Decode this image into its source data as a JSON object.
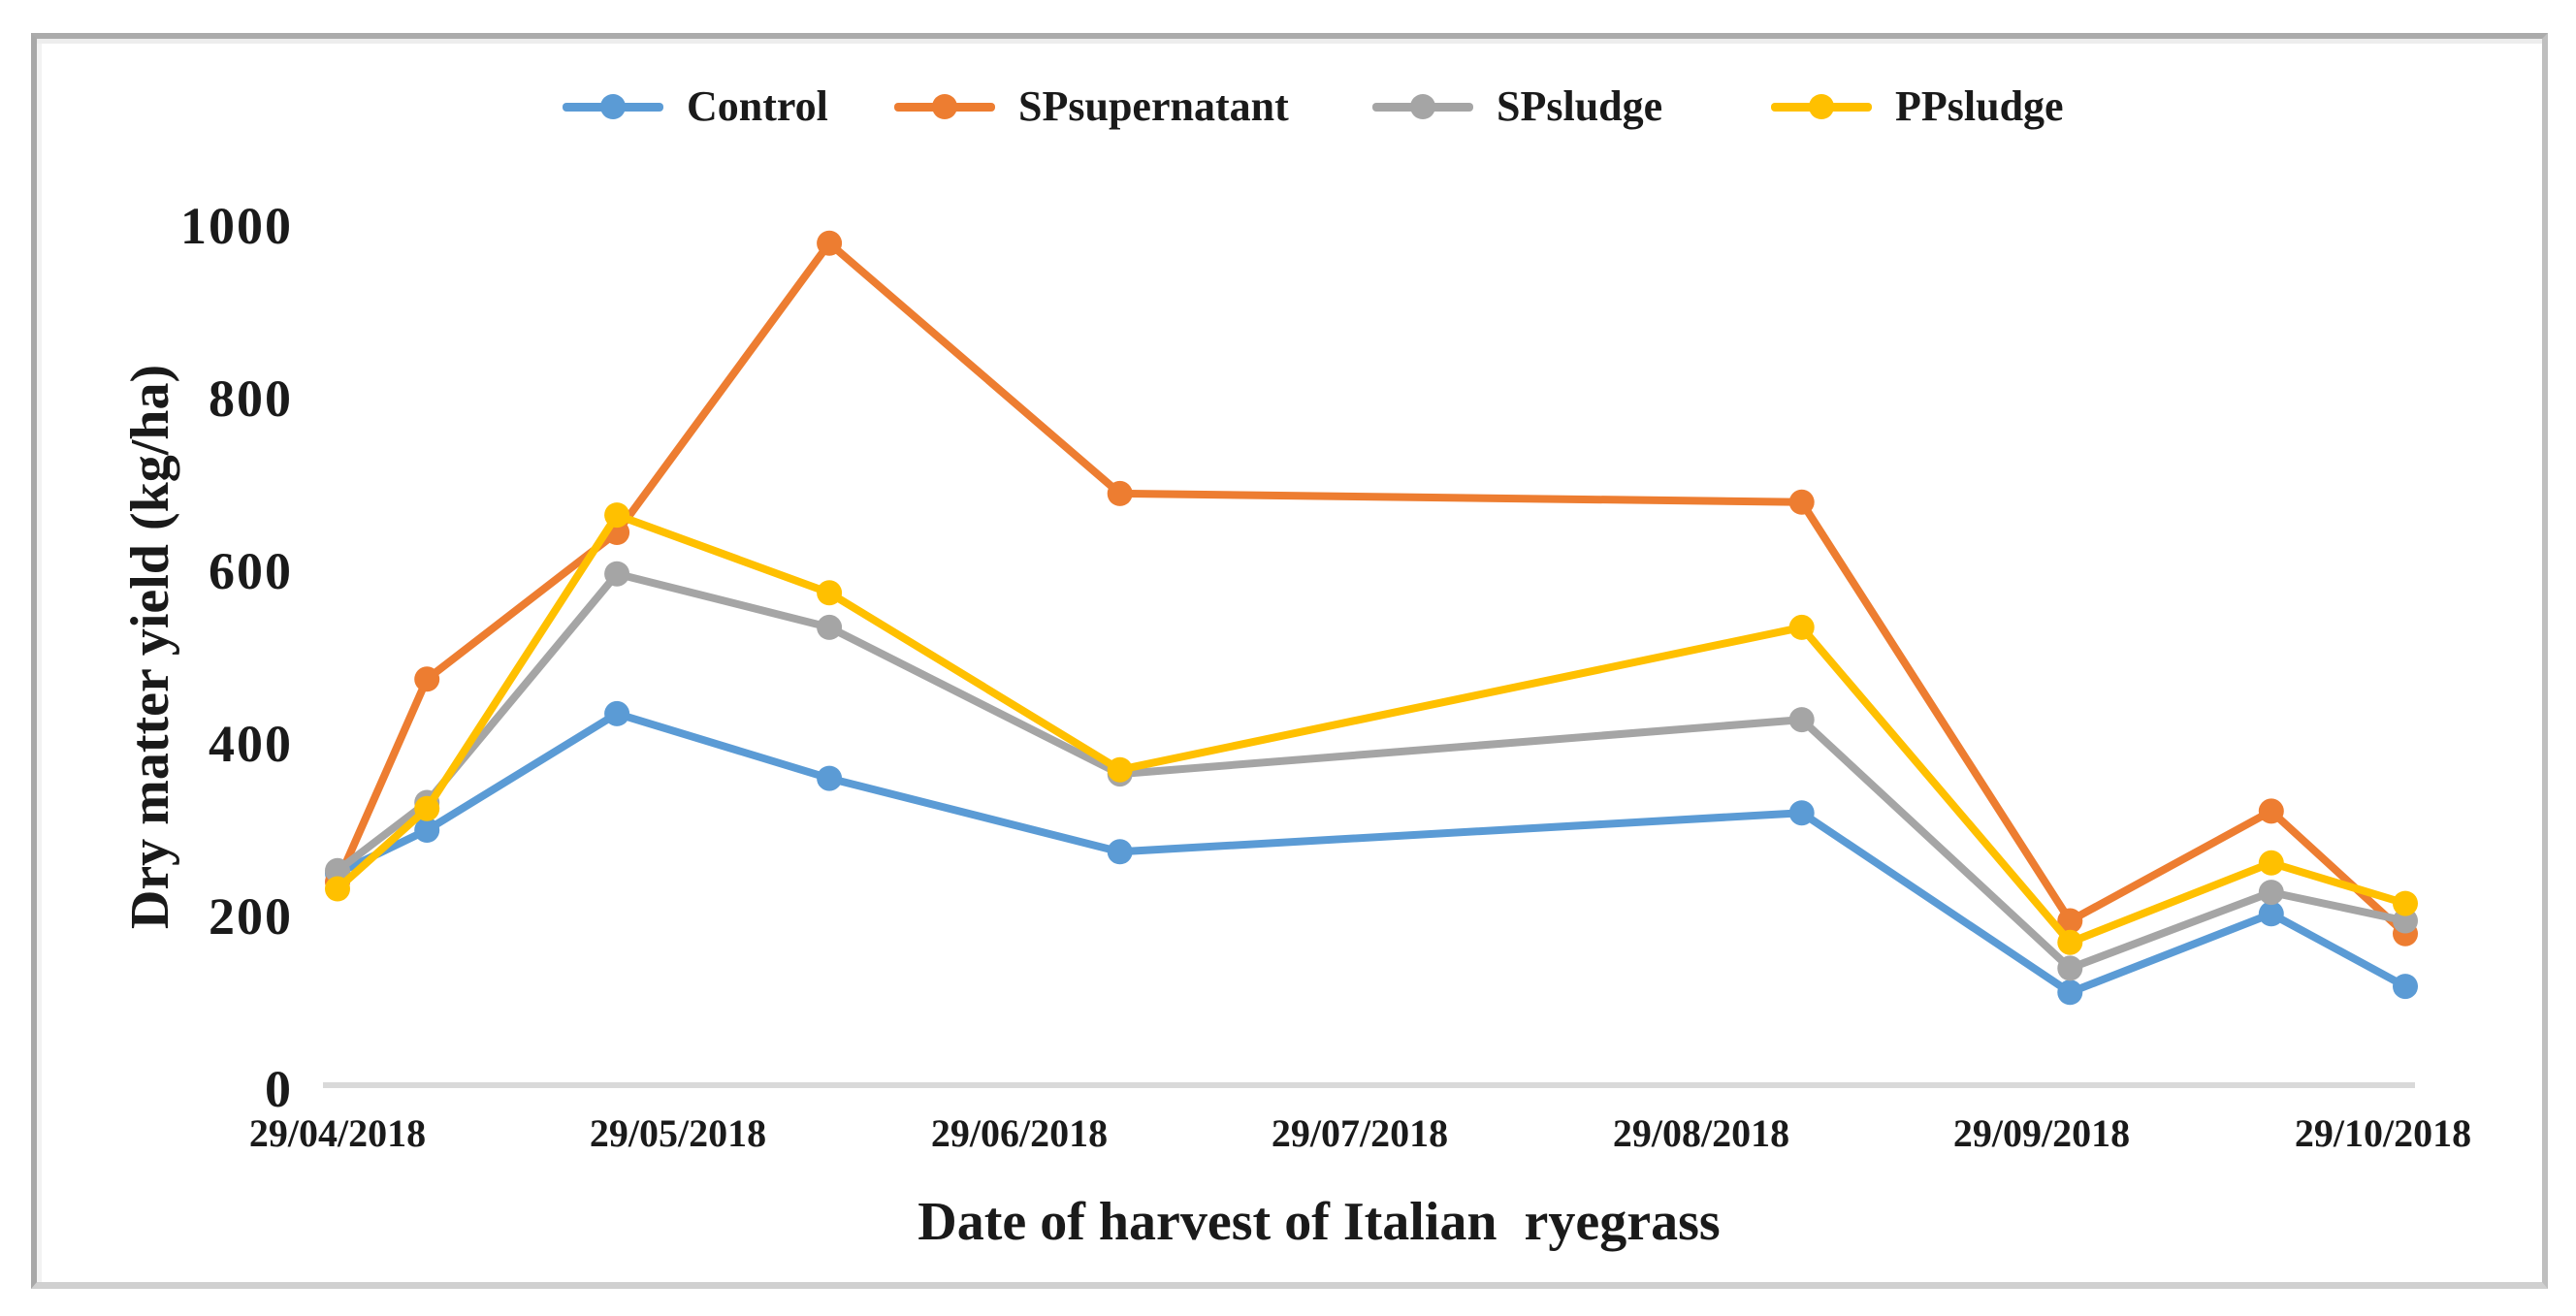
{
  "chart_data": {
    "type": "line",
    "title": "",
    "xlabel": "Date of harvest of Italian  ryegrass",
    "ylabel": "Dry matter yield (kg/ha)",
    "x_tick_labels": [
      "29/04/2018",
      "29/05/2018",
      "29/06/2018",
      "29/07/2018",
      "29/08/2018",
      "29/09/2018",
      "29/10/2018"
    ],
    "x_tick_day_offsets": [
      0,
      30,
      61,
      91,
      122,
      153,
      183
    ],
    "y_tick_labels": [
      "1000",
      "800",
      "600",
      "400",
      "200",
      "0"
    ],
    "ylim": [
      0,
      1000
    ],
    "y_tick_step": 200,
    "grid": false,
    "legend_position": "top",
    "x_unit": "date",
    "x_day_offsets_from_first_tick": [
      0,
      8,
      25,
      44,
      70,
      131,
      155,
      173,
      185
    ],
    "x_dates_approx": [
      "29/04/2018",
      "07/05/2018",
      "24/05/2018",
      "12/06/2018",
      "08/07/2018",
      "07/09/2018",
      "01/10/2018",
      "19/10/2018",
      "31/10/2018"
    ],
    "series": [
      {
        "name": "Control",
        "color": "#5B9BD5",
        "values": [
          250,
          300,
          435,
          360,
          275,
          320,
          112,
          203,
          119
        ]
      },
      {
        "name": "SPsupernatant",
        "color": "#ED7D31",
        "values": [
          240,
          475,
          645,
          980,
          690,
          680,
          195,
          322,
          180
        ]
      },
      {
        "name": "SPsludge",
        "color": "#A5A5A5",
        "values": [
          253,
          332,
          597,
          535,
          365,
          428,
          140,
          228,
          195
        ]
      },
      {
        "name": "PPsludge",
        "color": "#FFC000",
        "values": [
          232,
          325,
          665,
          575,
          370,
          535,
          170,
          262,
          215
        ]
      }
    ],
    "axis_color": "#D9D9D9",
    "text_color": "#1A1A1A"
  }
}
